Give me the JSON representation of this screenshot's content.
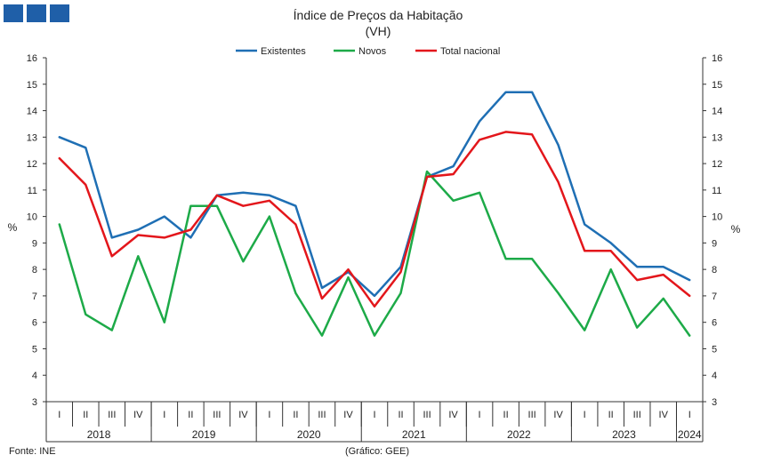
{
  "header": {
    "logo_color": "#1f5fa8"
  },
  "footer": {
    "source": "Fonte: INE",
    "credit": "(Gráfico: GEE)"
  },
  "chart_data": {
    "type": "line",
    "title": "Índice de Preços da Habitação",
    "subtitle": "(VH)",
    "ylabel_left": "%",
    "ylabel_right": "%",
    "ylim": [
      3,
      16
    ],
    "y_ticks": [
      3,
      4,
      5,
      6,
      7,
      8,
      9,
      10,
      11,
      12,
      13,
      14,
      15,
      16
    ],
    "legend_position": "top-center",
    "quarters": [
      "I",
      "II",
      "III",
      "IV",
      "I",
      "II",
      "III",
      "IV",
      "I",
      "II",
      "III",
      "IV",
      "I",
      "II",
      "III",
      "IV",
      "I",
      "II",
      "III",
      "IV",
      "I",
      "II",
      "III",
      "IV",
      "I"
    ],
    "years": [
      {
        "label": "2018",
        "start": 0,
        "count": 4
      },
      {
        "label": "2019",
        "start": 4,
        "count": 4
      },
      {
        "label": "2020",
        "start": 8,
        "count": 4
      },
      {
        "label": "2021",
        "start": 12,
        "count": 4
      },
      {
        "label": "2022",
        "start": 16,
        "count": 4
      },
      {
        "label": "2023",
        "start": 20,
        "count": 4
      },
      {
        "label": "2024",
        "start": 24,
        "count": 1
      }
    ],
    "series": [
      {
        "name": "Existentes",
        "color": "#1f6fb4",
        "values": [
          13.0,
          12.6,
          9.2,
          9.5,
          10.0,
          9.2,
          10.8,
          10.9,
          10.8,
          10.4,
          7.3,
          7.9,
          7.0,
          8.1,
          11.5,
          11.9,
          13.6,
          14.7,
          14.7,
          12.7,
          9.7,
          9.0,
          8.1,
          8.1,
          7.6
        ]
      },
      {
        "name": "Novos",
        "color": "#1daa48",
        "values": [
          9.7,
          6.3,
          5.7,
          8.5,
          6.0,
          10.4,
          10.4,
          8.3,
          10.0,
          7.1,
          5.5,
          7.7,
          5.5,
          7.1,
          11.7,
          10.6,
          10.9,
          8.4,
          8.4,
          7.1,
          5.7,
          8.0,
          5.8,
          6.9,
          5.5
        ]
      },
      {
        "name": "Total nacional",
        "color": "#e3161b",
        "values": [
          12.2,
          11.2,
          8.5,
          9.3,
          9.2,
          9.5,
          10.8,
          10.4,
          10.6,
          9.7,
          6.9,
          8.0,
          6.6,
          7.9,
          11.5,
          11.6,
          12.9,
          13.2,
          13.1,
          11.3,
          8.7,
          8.7,
          7.6,
          7.8,
          7.0
        ]
      }
    ]
  }
}
